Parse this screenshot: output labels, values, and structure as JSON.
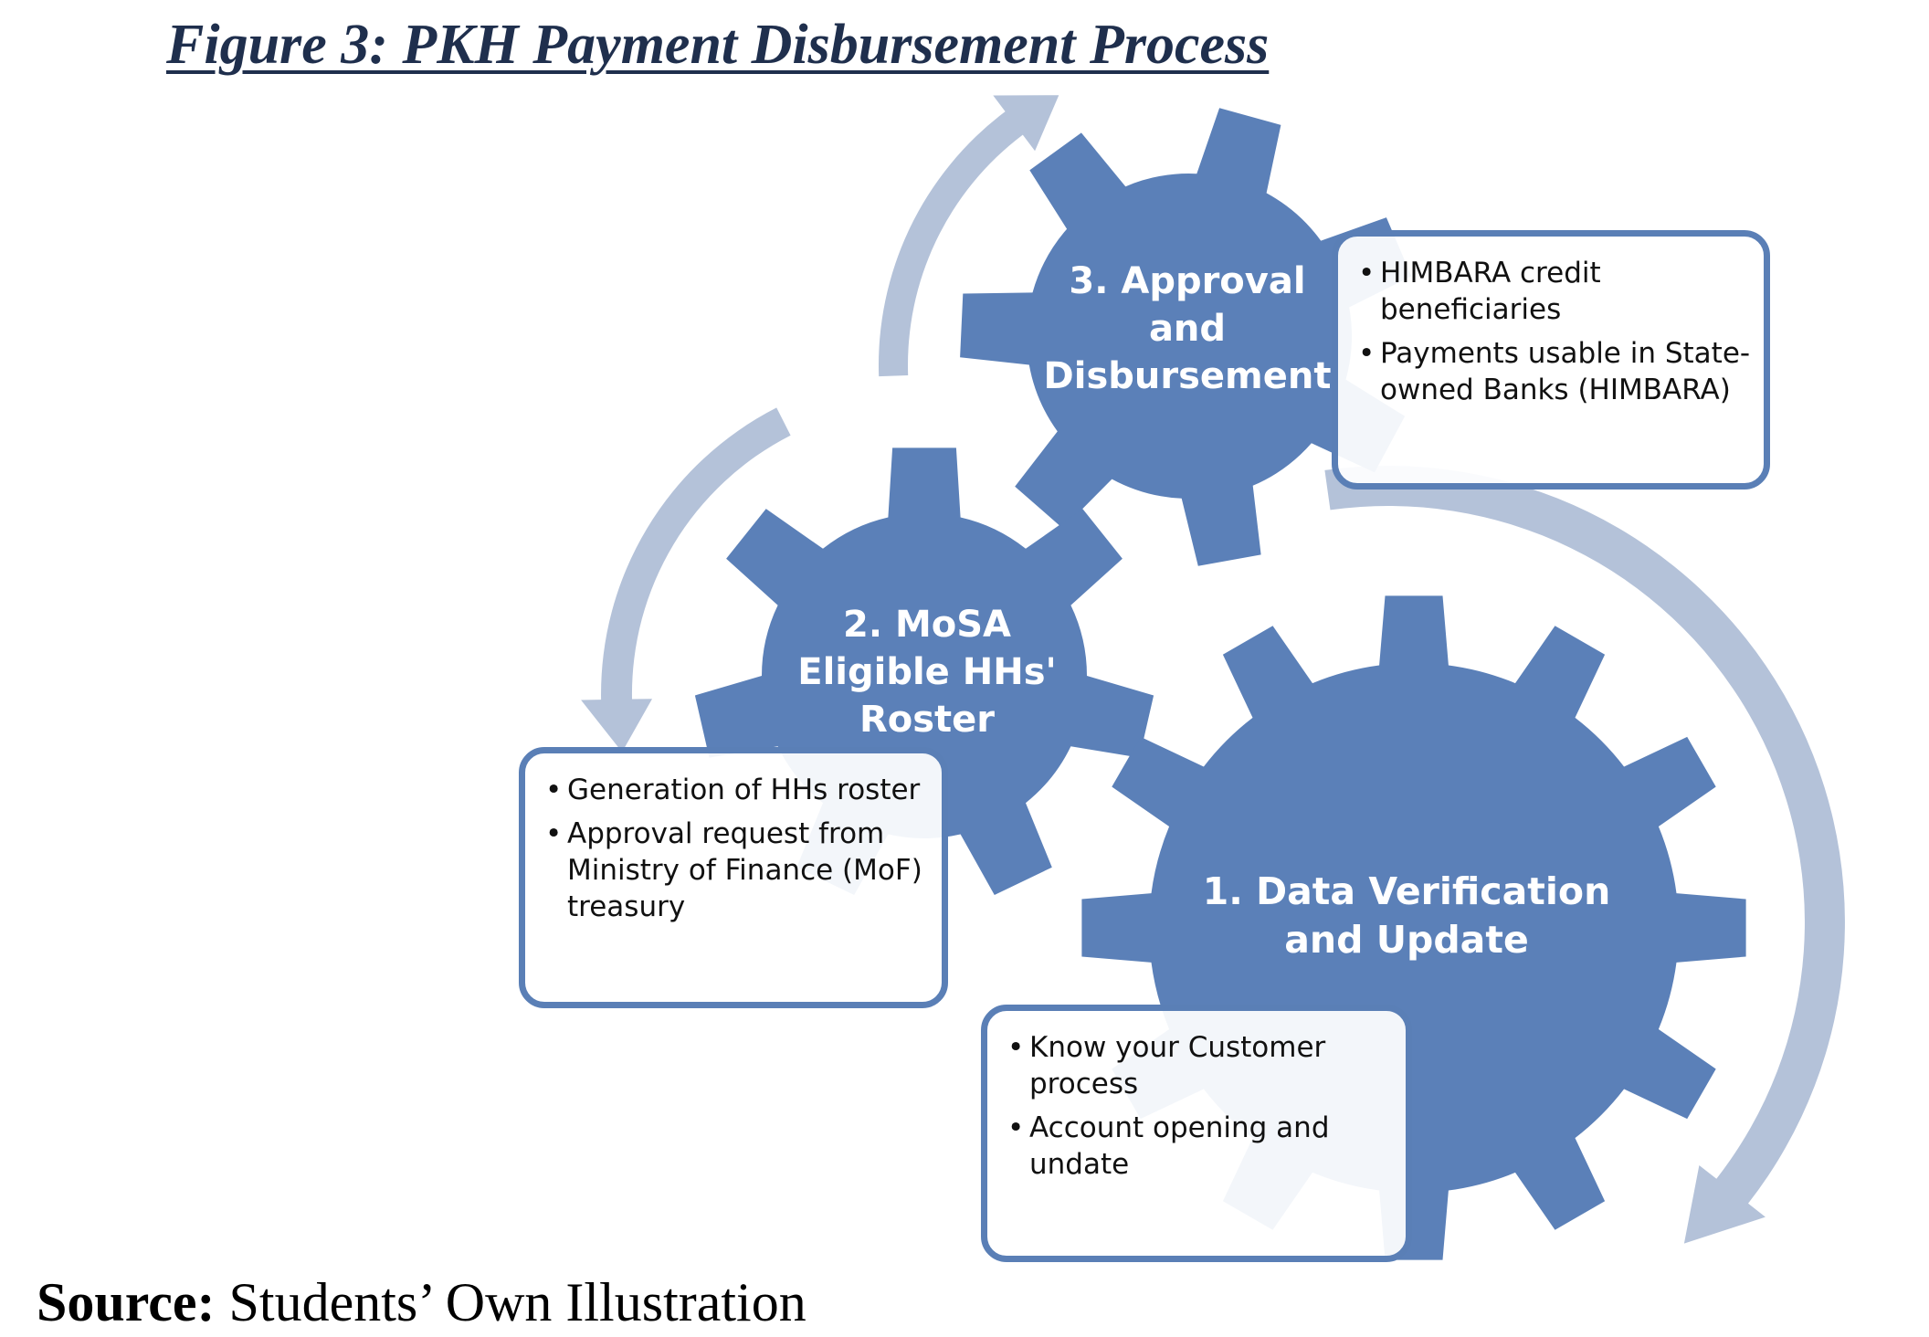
{
  "title": "Figure 3: PKH Payment Disbursement Process",
  "colors": {
    "gear": "#5b80b8",
    "arrow": "#b4c2d9",
    "box_border": "#5a7fb6",
    "title": "#1f2f4d"
  },
  "gears": [
    {
      "id": "approval",
      "lines": [
        "3. Approval",
        "and",
        "Disbursement"
      ],
      "bullets": [
        "HIMBARA credit beneficiaries",
        "Payments usable in State-owned Banks (HIMBARA)"
      ]
    },
    {
      "id": "mosa",
      "lines": [
        "2. MoSA",
        "Eligible HHs'",
        "Roster"
      ],
      "bullets": [
        "Generation of HHs roster",
        "Approval request from Ministry of Finance (MoF) treasury"
      ]
    },
    {
      "id": "data",
      "lines": [
        "1. Data Verification",
        "and Update"
      ],
      "bullets": [
        "Know your Customer process",
        "Account opening and undate"
      ]
    }
  ],
  "source": {
    "label": "Source:",
    "text": " Students’ Own Illustration"
  }
}
